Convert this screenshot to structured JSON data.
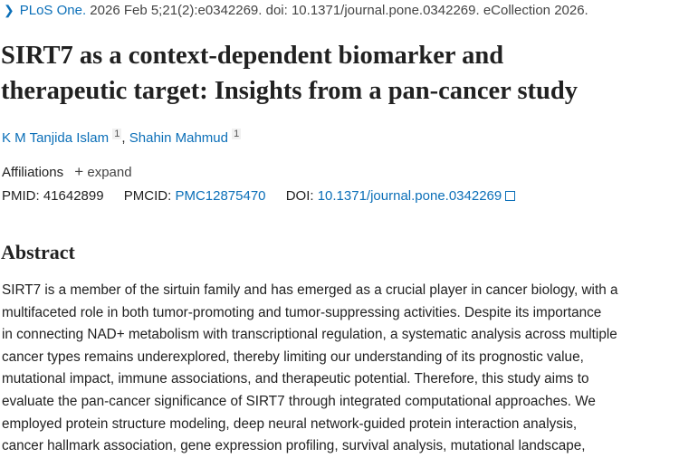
{
  "citation": {
    "journal": "PLoS One.",
    "details": " 2026 Feb 5;21(2):e0342269. doi: 10.1371/journal.pone.0342269. eCollection 2026."
  },
  "title_lines": [
    "SIRT7 as a context-dependent biomarker and",
    "therapeutic target: Insights from a pan-cancer study"
  ],
  "authors": [
    {
      "name": "K M Tanjida Islam",
      "sup": "1"
    },
    {
      "name": "Shahin Mahmud",
      "sup": "1"
    }
  ],
  "affiliations": {
    "label": "Affiliations",
    "expand_label": "expand"
  },
  "ids": {
    "pmid_label": "PMID:",
    "pmid": "41642899",
    "pmcid_label": "PMCID:",
    "pmcid": "PMC12875470",
    "doi_label": "DOI:",
    "doi": "10.1371/journal.pone.0342269"
  },
  "abstract": {
    "heading": "Abstract",
    "lines": [
      "SIRT7 is a member of the sirtuin family and has emerged as a crucial player in cancer biology, with a",
      "multifaceted role in both tumor-promoting and tumor-suppressing activities. Despite its importance",
      "in connecting NAD+ metabolism with transcriptional regulation, a systematic analysis across multiple",
      "cancer types remains underexplored, thereby limiting our understanding of its prognostic value,",
      "mutational impact, immune associations, and therapeutic potential. Therefore, this study aims to",
      "evaluate the pan-cancer significance of SIRT7 through integrated computational approaches. We",
      "employed protein structure modeling, deep neural network-guided protein interaction analysis,",
      "cancer hallmark association, gene expression profiling, survival analysis, mutational landscape,"
    ]
  },
  "colors": {
    "link": "#0b6fb8",
    "text": "#212121"
  }
}
